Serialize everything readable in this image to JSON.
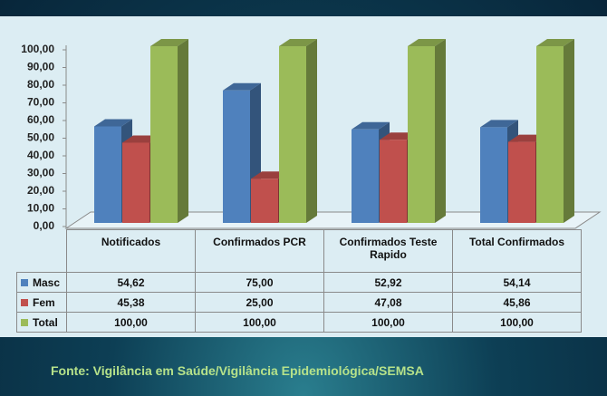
{
  "chart_data": {
    "type": "bar3d",
    "categories": [
      "Notificados",
      "Confirmados PCR",
      "Confirmados Teste Rapido",
      "Total Confirmados"
    ],
    "series": [
      {
        "name": "Masc",
        "color": "#4f81bd",
        "values": [
          54.62,
          75.0,
          52.92,
          54.14
        ],
        "value_labels": [
          "54,62",
          "75,00",
          "52,92",
          "54,14"
        ]
      },
      {
        "name": "Fem",
        "color": "#c0504d",
        "values": [
          45.38,
          25.0,
          47.08,
          45.86
        ],
        "value_labels": [
          "45,38",
          "25,00",
          "47,08",
          "45,86"
        ]
      },
      {
        "name": "Total",
        "color": "#9bbb59",
        "values": [
          100,
          100,
          100,
          100
        ],
        "value_labels": [
          "100,00",
          "100,00",
          "100,00",
          "100,00"
        ]
      }
    ],
    "ylim": [
      0,
      100
    ],
    "yticks": [
      {
        "value": 0,
        "label": "0,00"
      },
      {
        "value": 10,
        "label": "10,00"
      },
      {
        "value": 20,
        "label": "20,00"
      },
      {
        "value": 30,
        "label": "30,00"
      },
      {
        "value": 40,
        "label": "40,00"
      },
      {
        "value": 50,
        "label": "50,00"
      },
      {
        "value": 60,
        "label": "60,00"
      },
      {
        "value": 70,
        "label": "70,00"
      },
      {
        "value": 80,
        "label": "80,00"
      },
      {
        "value": 90,
        "label": "90,00"
      },
      {
        "value": 100,
        "label": "100,00"
      }
    ]
  },
  "source": "Fonte: Vigilância em Saúde/Vigilância Epidemiológica/SEMSA"
}
